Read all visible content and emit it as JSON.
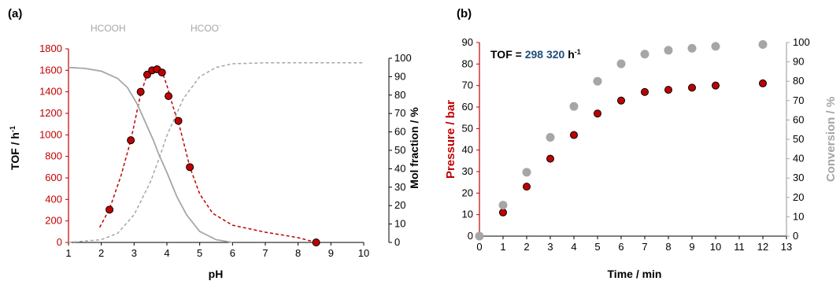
{
  "chart_data": [
    {
      "panel_label": "(a)",
      "type": "scatter+line",
      "xlabel": "pH",
      "ylabel_left": "TOF / h",
      "ylabel_left_sup": "-1",
      "ylabel_right": "Mol fraction / %",
      "xlim": [
        1,
        10
      ],
      "ylim_left": [
        0,
        1800
      ],
      "ylim_right": [
        0,
        100
      ],
      "xticks": [
        1,
        2,
        3,
        4,
        5,
        6,
        7,
        8,
        9,
        10
      ],
      "yticks_left": [
        0,
        200,
        400,
        600,
        800,
        1000,
        1200,
        1400,
        1600,
        1800
      ],
      "yticks_right": [
        0,
        10,
        20,
        30,
        40,
        50,
        60,
        70,
        80,
        90,
        100
      ],
      "annotations": [
        {
          "text": "HCOOH",
          "sup": ""
        },
        {
          "text": "HCOO",
          "sup": "-"
        }
      ],
      "series": [
        {
          "kind": "points",
          "axis": "left",
          "color": "#c00000",
          "x": [
            2.25,
            2.9,
            3.2,
            3.4,
            3.55,
            3.7,
            3.85,
            4.05,
            4.35,
            4.7,
            8.55
          ],
          "y": [
            305,
            950,
            1400,
            1560,
            1600,
            1610,
            1580,
            1360,
            1130,
            700,
            0
          ]
        },
        {
          "kind": "dashed-fit",
          "axis": "left",
          "color": "#c00000",
          "x": [
            1.95,
            2.25,
            2.6,
            2.9,
            3.2,
            3.4,
            3.55,
            3.7,
            3.85,
            4.0,
            4.2,
            4.4,
            4.7,
            5.0,
            5.4,
            6.0,
            7.0,
            8.0,
            8.55
          ],
          "y": [
            140,
            310,
            620,
            950,
            1380,
            1560,
            1605,
            1615,
            1590,
            1460,
            1250,
            1060,
            700,
            450,
            270,
            160,
            95,
            45,
            0
          ]
        },
        {
          "kind": "solid-fraction",
          "axis": "right",
          "color": "#a6a6a6",
          "x": [
            1.0,
            1.5,
            2.0,
            2.5,
            2.8,
            3.1,
            3.4,
            3.6,
            3.75,
            4.0,
            4.3,
            4.6,
            5.0,
            5.5,
            6.0
          ],
          "y": [
            95,
            94.5,
            93,
            89,
            84,
            75,
            63,
            55,
            48,
            38,
            25,
            15,
            6,
            1.5,
            0
          ]
        },
        {
          "kind": "dashed-fraction",
          "axis": "right",
          "color": "#a6a6a6",
          "x": [
            1.0,
            2.0,
            2.5,
            3.0,
            3.5,
            3.75,
            4.0,
            4.5,
            5.0,
            5.5,
            6.0,
            7.0,
            10.0
          ],
          "y": [
            0,
            1.5,
            5,
            15,
            33,
            45,
            58,
            78,
            90,
            95,
            97,
            97.5,
            97.5
          ]
        }
      ]
    },
    {
      "panel_label": "(b)",
      "type": "scatter",
      "xlabel": "Time / min",
      "ylabel_left": "Pressure / bar",
      "ylabel_right": "Conversion / %",
      "xlim": [
        0,
        13
      ],
      "ylim_left": [
        0,
        90
      ],
      "ylim_right": [
        0,
        100
      ],
      "xticks": [
        0,
        1,
        2,
        3,
        4,
        5,
        6,
        7,
        8,
        9,
        10,
        11,
        12,
        13
      ],
      "yticks_left": [
        0,
        10,
        20,
        30,
        40,
        50,
        60,
        70,
        80,
        90
      ],
      "yticks_right": [
        0,
        10,
        20,
        30,
        40,
        50,
        60,
        70,
        80,
        90,
        100
      ],
      "annotation": {
        "prefix": "TOF = ",
        "value": "298 320",
        "unit": " h",
        "sup": "-1"
      },
      "series": [
        {
          "name": "Pressure",
          "axis": "left",
          "color": "#c00000",
          "x": [
            0,
            1,
            2,
            3,
            4,
            5,
            6,
            7,
            8,
            9,
            10,
            12
          ],
          "y": [
            0,
            11,
            23,
            36,
            47,
            57,
            63,
            67,
            68,
            69,
            70,
            71
          ]
        },
        {
          "name": "Conversion",
          "axis": "right",
          "color": "#a6a6a6",
          "x": [
            0,
            1,
            2,
            3,
            4,
            5,
            6,
            7,
            8,
            9,
            10,
            12
          ],
          "y": [
            0,
            16,
            33,
            51,
            67,
            80,
            89,
            94,
            96,
            97,
            98,
            99
          ]
        }
      ]
    }
  ]
}
